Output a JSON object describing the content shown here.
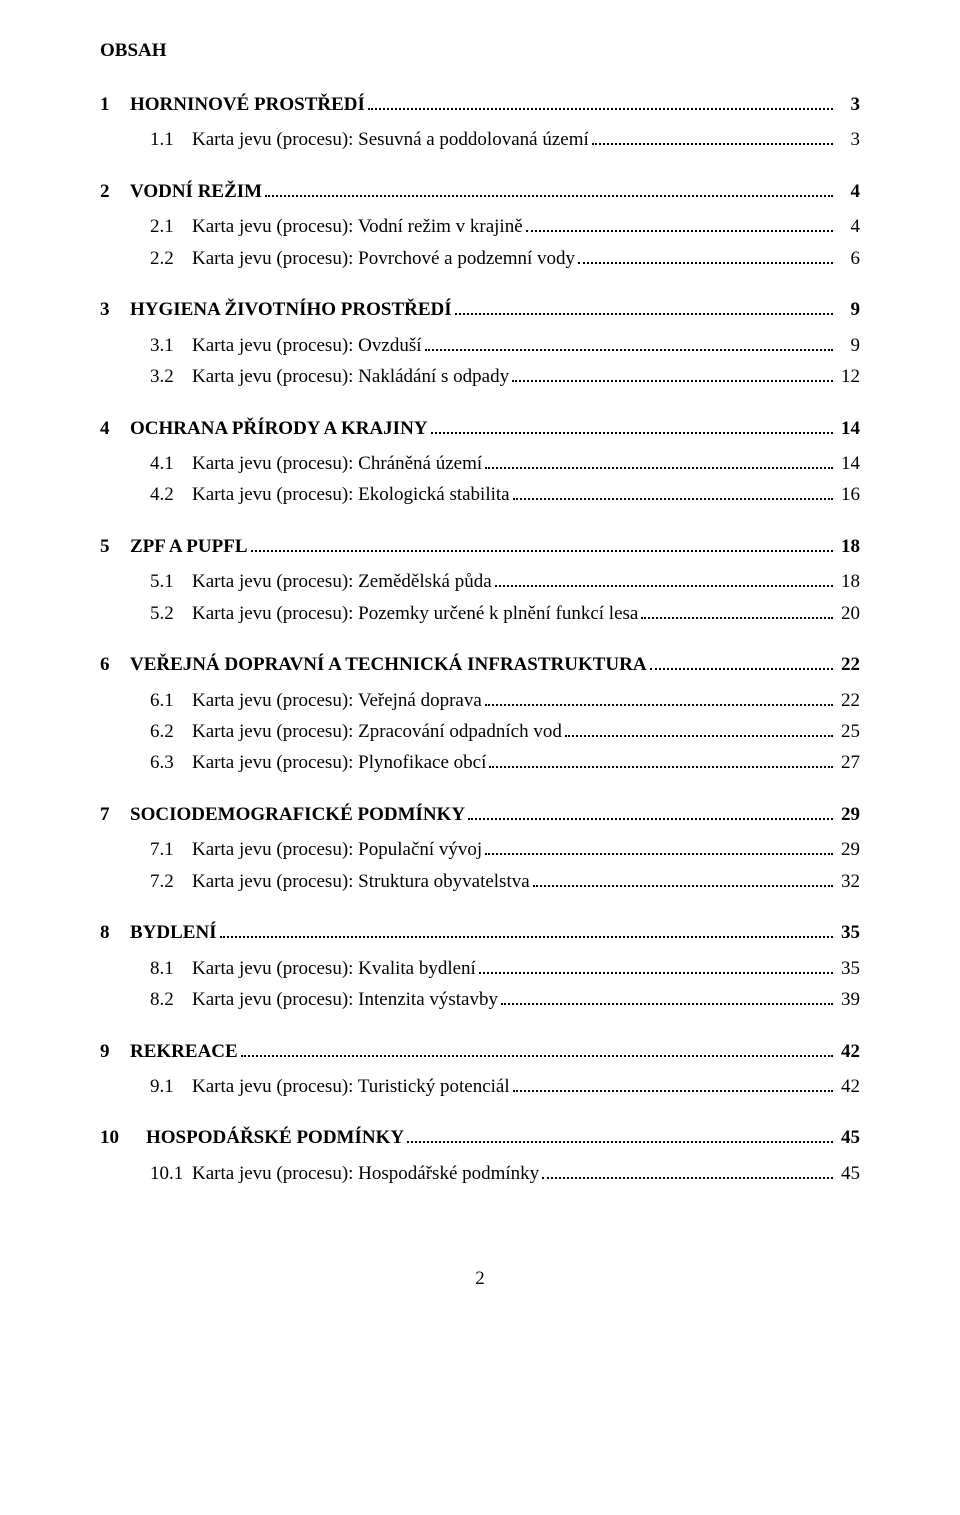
{
  "title": "OBSAH",
  "pageNumber": "2",
  "chapters": [
    {
      "num": "1",
      "label": "HORNINOVÉ PROSTŘEDÍ",
      "page": "3",
      "sections": [
        {
          "num": "1.1",
          "label": "Karta jevu (procesu):  Sesuvná a poddolovaná území",
          "page": "3"
        }
      ]
    },
    {
      "num": "2",
      "label": "VODNÍ REŽIM",
      "page": "4",
      "sections": [
        {
          "num": "2.1",
          "label": "Karta jevu (procesu):  Vodní režim v krajině",
          "page": "4"
        },
        {
          "num": "2.2",
          "label": "Karta jevu (procesu):  Povrchové a podzemní vody",
          "page": "6"
        }
      ]
    },
    {
      "num": "3",
      "label": "HYGIENA ŽIVOTNÍHO PROSTŘEDÍ",
      "page": "9",
      "sections": [
        {
          "num": "3.1",
          "label": "Karta jevu (procesu):  Ovzduší",
          "page": "9"
        },
        {
          "num": "3.2",
          "label": "Karta jevu (procesu):  Nakládání s odpady",
          "page": "12"
        }
      ]
    },
    {
      "num": "4",
      "label": "OCHRANA PŘÍRODY A KRAJINY",
      "page": "14",
      "sections": [
        {
          "num": "4.1",
          "label": "Karta jevu (procesu):  Chráněná území",
          "page": "14"
        },
        {
          "num": "4.2",
          "label": "Karta jevu (procesu):  Ekologická stabilita",
          "page": "16"
        }
      ]
    },
    {
      "num": "5",
      "label": "ZPF A PUPFL",
      "page": "18",
      "sections": [
        {
          "num": "5.1",
          "label": "Karta jevu (procesu):  Zemědělská půda",
          "page": "18"
        },
        {
          "num": "5.2",
          "label": "Karta jevu (procesu):  Pozemky určené k plnění funkcí lesa",
          "page": "20"
        }
      ]
    },
    {
      "num": "6",
      "label": "VEŘEJNÁ DOPRAVNÍ A TECHNICKÁ INFRASTRUKTURA",
      "page": "22",
      "sections": [
        {
          "num": "6.1",
          "label": "Karta jevu (procesu):  Veřejná doprava",
          "page": "22"
        },
        {
          "num": "6.2",
          "label": "Karta jevu (procesu):  Zpracování odpadních vod",
          "page": "25"
        },
        {
          "num": "6.3",
          "label": "Karta jevu (procesu):  Plynofikace obcí",
          "page": "27"
        }
      ]
    },
    {
      "num": "7",
      "label": "SOCIODEMOGRAFICKÉ PODMÍNKY",
      "page": "29",
      "sections": [
        {
          "num": "7.1",
          "label": "Karta jevu (procesu):  Populační vývoj",
          "page": "29"
        },
        {
          "num": "7.2",
          "label": "Karta jevu (procesu):  Struktura obyvatelstva",
          "page": "32"
        }
      ]
    },
    {
      "num": "8",
      "label": "BYDLENÍ",
      "page": "35",
      "sections": [
        {
          "num": "8.1",
          "label": "Karta jevu (procesu):  Kvalita bydlení",
          "page": "35"
        },
        {
          "num": "8.2",
          "label": "Karta jevu (procesu):  Intenzita výstavby",
          "page": "39"
        }
      ]
    },
    {
      "num": "9",
      "label": "REKREACE",
      "page": "42",
      "sections": [
        {
          "num": "9.1",
          "label": "Karta jevu (procesu):  Turistický potenciál",
          "page": "42"
        }
      ]
    },
    {
      "num": "10",
      "label": "HOSPODÁŘSKÉ PODMÍNKY",
      "page": "45",
      "sections": [
        {
          "num": "10.1",
          "label": "Karta jevu (procesu):  Hospodářské podmínky",
          "page": "45"
        }
      ]
    }
  ]
}
